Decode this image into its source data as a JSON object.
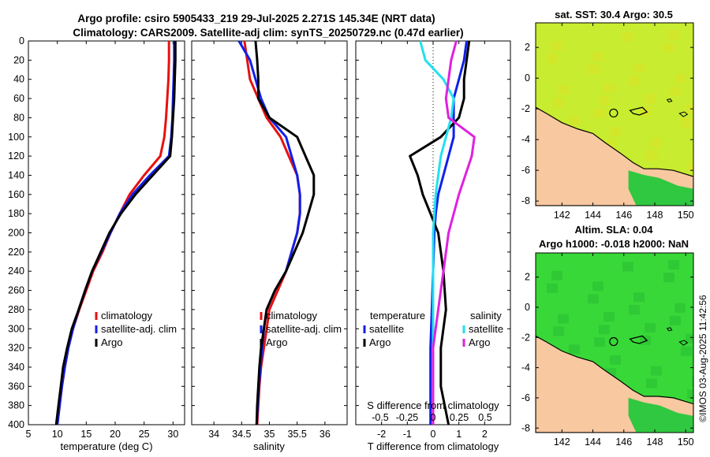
{
  "title": {
    "line1": "Argo profile: csiro 5905433_219 29-Jul-2025 2.271S 145.34E (NRT data)",
    "line2": "Climatology: CARS2009. Satellite-adj clim: synTS_20250729.nc (0.47d earlier)"
  },
  "watermark": "©IMOS 03-Aug-2025 11:42:56",
  "colors": {
    "climatology": "#e81010",
    "satellite": "#1020e8",
    "argo": "#000000",
    "sal_sat": "#22e0f0",
    "sal_argo": "#e020e0",
    "land": "#f8c8a0",
    "sea": "#28d028"
  },
  "chart_data": [
    {
      "type": "line",
      "name": "temperature",
      "xlabel": "temperature (deg C)",
      "ylabel": "",
      "xlim": [
        5,
        32
      ],
      "ylim": [
        400,
        0
      ],
      "xticks": [
        5,
        10,
        15,
        20,
        25,
        30
      ],
      "yticks": [
        0,
        20,
        40,
        60,
        80,
        100,
        120,
        140,
        160,
        180,
        200,
        220,
        240,
        260,
        280,
        300,
        320,
        340,
        360,
        380,
        400
      ],
      "legend": [
        "climatology",
        "satellite-adj. clim",
        "Argo"
      ],
      "series": [
        {
          "name": "climatology",
          "color": "#e81010",
          "points": [
            [
              29.3,
              0
            ],
            [
              29.3,
              20
            ],
            [
              29.2,
              40
            ],
            [
              29.0,
              60
            ],
            [
              28.8,
              80
            ],
            [
              28.5,
              100
            ],
            [
              27.8,
              120
            ],
            [
              25,
              140
            ],
            [
              22.5,
              160
            ],
            [
              20.8,
              180
            ],
            [
              19.2,
              200
            ],
            [
              17.8,
              220
            ],
            [
              16.2,
              240
            ],
            [
              15.0,
              260
            ],
            [
              13.8,
              280
            ],
            [
              12.7,
              300
            ],
            [
              11.9,
              320
            ],
            [
              11.3,
              340
            ],
            [
              10.8,
              360
            ],
            [
              10.4,
              380
            ],
            [
              10.0,
              400
            ]
          ]
        },
        {
          "name": "satellite-adj. clim",
          "color": "#1020e8",
          "points": [
            [
              30.2,
              0
            ],
            [
              30.2,
              20
            ],
            [
              30.1,
              40
            ],
            [
              30.0,
              60
            ],
            [
              29.9,
              80
            ],
            [
              29.7,
              100
            ],
            [
              29.3,
              120
            ],
            [
              26,
              140
            ],
            [
              23,
              160
            ],
            [
              20.8,
              180
            ],
            [
              19.2,
              200
            ],
            [
              17.6,
              220
            ],
            [
              16.0,
              240
            ],
            [
              14.8,
              260
            ],
            [
              13.7,
              280
            ],
            [
              12.7,
              300
            ],
            [
              11.9,
              320
            ],
            [
              11.3,
              340
            ],
            [
              10.8,
              360
            ],
            [
              10.4,
              380
            ],
            [
              10.0,
              400
            ]
          ]
        },
        {
          "name": "Argo",
          "color": "#000000",
          "points": [
            [
              30.4,
              0
            ],
            [
              30.4,
              20
            ],
            [
              30.3,
              40
            ],
            [
              30.2,
              60
            ],
            [
              30.0,
              80
            ],
            [
              29.8,
              100
            ],
            [
              29.5,
              120
            ],
            [
              26.5,
              140
            ],
            [
              23.5,
              160
            ],
            [
              21.0,
              180
            ],
            [
              19.0,
              200
            ],
            [
              17.5,
              220
            ],
            [
              16.0,
              240
            ],
            [
              14.8,
              260
            ],
            [
              13.7,
              280
            ],
            [
              12.5,
              300
            ],
            [
              11.7,
              320
            ],
            [
              11.0,
              340
            ],
            [
              10.6,
              360
            ],
            [
              10.2,
              380
            ],
            [
              9.8,
              400
            ]
          ]
        }
      ]
    },
    {
      "type": "line",
      "name": "salinity",
      "xlabel": "salinity",
      "xlim": [
        33.6,
        36.4
      ],
      "ylim": [
        400,
        0
      ],
      "xticks": [
        34,
        34.5,
        35,
        35.5,
        36
      ],
      "legend": [
        "climatology",
        "satellite-adj. clim",
        "Argo"
      ],
      "series": [
        {
          "name": "climatology",
          "color": "#e81010",
          "points": [
            [
              34.55,
              0
            ],
            [
              34.6,
              20
            ],
            [
              34.65,
              40
            ],
            [
              34.8,
              60
            ],
            [
              34.95,
              80
            ],
            [
              35.2,
              100
            ],
            [
              35.35,
              120
            ],
            [
              35.5,
              140
            ],
            [
              35.55,
              160
            ],
            [
              35.55,
              180
            ],
            [
              35.5,
              200
            ],
            [
              35.4,
              220
            ],
            [
              35.3,
              240
            ],
            [
              35.15,
              260
            ],
            [
              35.0,
              280
            ],
            [
              34.95,
              300
            ],
            [
              34.9,
              320
            ],
            [
              34.85,
              340
            ],
            [
              34.82,
              360
            ],
            [
              34.8,
              380
            ],
            [
              34.78,
              400
            ]
          ]
        },
        {
          "name": "satellite-adj. clim",
          "color": "#1020e8",
          "points": [
            [
              34.45,
              0
            ],
            [
              34.65,
              20
            ],
            [
              34.75,
              40
            ],
            [
              34.85,
              60
            ],
            [
              35.0,
              80
            ],
            [
              35.3,
              100
            ],
            [
              35.4,
              120
            ],
            [
              35.5,
              140
            ],
            [
              35.55,
              160
            ],
            [
              35.55,
              180
            ],
            [
              35.5,
              200
            ],
            [
              35.4,
              220
            ],
            [
              35.3,
              240
            ],
            [
              35.1,
              260
            ],
            [
              34.95,
              280
            ],
            [
              34.9,
              300
            ],
            [
              34.87,
              320
            ],
            [
              34.84,
              340
            ],
            [
              34.81,
              360
            ],
            [
              34.79,
              380
            ],
            [
              34.77,
              400
            ]
          ]
        },
        {
          "name": "Argo",
          "color": "#000000",
          "points": [
            [
              34.75,
              0
            ],
            [
              34.78,
              20
            ],
            [
              34.8,
              40
            ],
            [
              34.8,
              60
            ],
            [
              35.0,
              80
            ],
            [
              35.5,
              100
            ],
            [
              35.65,
              120
            ],
            [
              35.8,
              140
            ],
            [
              35.8,
              160
            ],
            [
              35.7,
              180
            ],
            [
              35.6,
              200
            ],
            [
              35.45,
              220
            ],
            [
              35.3,
              240
            ],
            [
              35.1,
              260
            ],
            [
              34.95,
              280
            ],
            [
              34.9,
              300
            ],
            [
              34.85,
              320
            ],
            [
              34.82,
              340
            ],
            [
              34.8,
              360
            ],
            [
              34.78,
              380
            ],
            [
              34.77,
              400
            ]
          ]
        }
      ]
    },
    {
      "type": "line",
      "name": "difference",
      "xlabel": "T difference from climatology",
      "x2label": "S difference from climatology",
      "xlim": [
        -3,
        3
      ],
      "ylim": [
        400,
        0
      ],
      "xticks": [
        -2,
        -1,
        0,
        1,
        2
      ],
      "xticks_top": [
        "-0.5",
        "-0.25",
        "0",
        "0.25",
        "0.5"
      ],
      "legend_temperature": {
        "title": "temperature",
        "items": [
          "satellite",
          "Argo"
        ]
      },
      "legend_salinity": {
        "title": "salinity",
        "items": [
          "satellite",
          "Argo"
        ]
      },
      "series": [
        {
          "name": "temperature satellite",
          "color": "#1020e8",
          "points": [
            [
              1.3,
              0
            ],
            [
              1.2,
              20
            ],
            [
              1.0,
              40
            ],
            [
              0.8,
              60
            ],
            [
              0.8,
              80
            ],
            [
              0.8,
              100
            ],
            [
              0.6,
              120
            ],
            [
              0.4,
              140
            ],
            [
              0.2,
              160
            ],
            [
              0.1,
              180
            ],
            [
              0.05,
              200
            ],
            [
              0.0,
              240
            ],
            [
              -0.05,
              280
            ],
            [
              -0.1,
              320
            ],
            [
              -0.1,
              360
            ],
            [
              -0.1,
              400
            ]
          ]
        },
        {
          "name": "temperature Argo",
          "color": "#000000",
          "points": [
            [
              1.4,
              0
            ],
            [
              1.3,
              20
            ],
            [
              1.2,
              40
            ],
            [
              1.2,
              60
            ],
            [
              1.0,
              80
            ],
            [
              0.3,
              100
            ],
            [
              -0.9,
              120
            ],
            [
              -0.6,
              140
            ],
            [
              -0.4,
              160
            ],
            [
              -0.1,
              180
            ],
            [
              0.2,
              200
            ],
            [
              0.4,
              240
            ],
            [
              0.5,
              280
            ],
            [
              0.3,
              320
            ],
            [
              0.3,
              360
            ],
            [
              0.6,
              400
            ]
          ]
        },
        {
          "name": "salinity satellite",
          "color": "#22e0f0",
          "points": [
            [
              -0.5,
              0
            ],
            [
              -0.3,
              20
            ],
            [
              0.4,
              40
            ],
            [
              0.8,
              60
            ],
            [
              0.7,
              80
            ],
            [
              0.5,
              100
            ],
            [
              0.3,
              120
            ],
            [
              0.1,
              160
            ],
            [
              0.0,
              200
            ],
            [
              0.0,
              280
            ],
            [
              0.0,
              320
            ],
            [
              0.0,
              400
            ]
          ]
        },
        {
          "name": "salinity Argo",
          "color": "#e020e0",
          "points": [
            [
              0.9,
              0
            ],
            [
              0.7,
              20
            ],
            [
              0.6,
              40
            ],
            [
              0.5,
              60
            ],
            [
              0.6,
              80
            ],
            [
              1.6,
              100
            ],
            [
              1.5,
              120
            ],
            [
              1.0,
              160
            ],
            [
              0.6,
              200
            ],
            [
              0.4,
              240
            ],
            [
              0.2,
              280
            ],
            [
              0.0,
              320
            ],
            [
              0.0,
              400
            ]
          ]
        }
      ]
    },
    {
      "type": "heatmap",
      "name": "sat-sst-map",
      "title": "sat. SST: 30.4 Argo: 30.5",
      "xticks": [
        142,
        144,
        146,
        148,
        150
      ],
      "yticks": [
        2,
        0,
        -2,
        -4,
        -6,
        -8
      ],
      "xlim": [
        140.3,
        150.5
      ],
      "ylim": [
        -8.3,
        3.6
      ],
      "argo_position": [
        145.34,
        -2.271
      ]
    },
    {
      "type": "heatmap",
      "name": "altim-sla-map",
      "title": "Altim. SLA: 0.04",
      "subtitle": "Argo h1000: -0.018 h2000: NaN",
      "xticks": [
        142,
        144,
        146,
        148,
        150
      ],
      "yticks": [
        2,
        0,
        -2,
        -4,
        -6,
        -8
      ],
      "xlim": [
        140.3,
        150.5
      ],
      "ylim": [
        -8.3,
        3.6
      ],
      "argo_position": [
        145.34,
        -2.271
      ]
    }
  ]
}
